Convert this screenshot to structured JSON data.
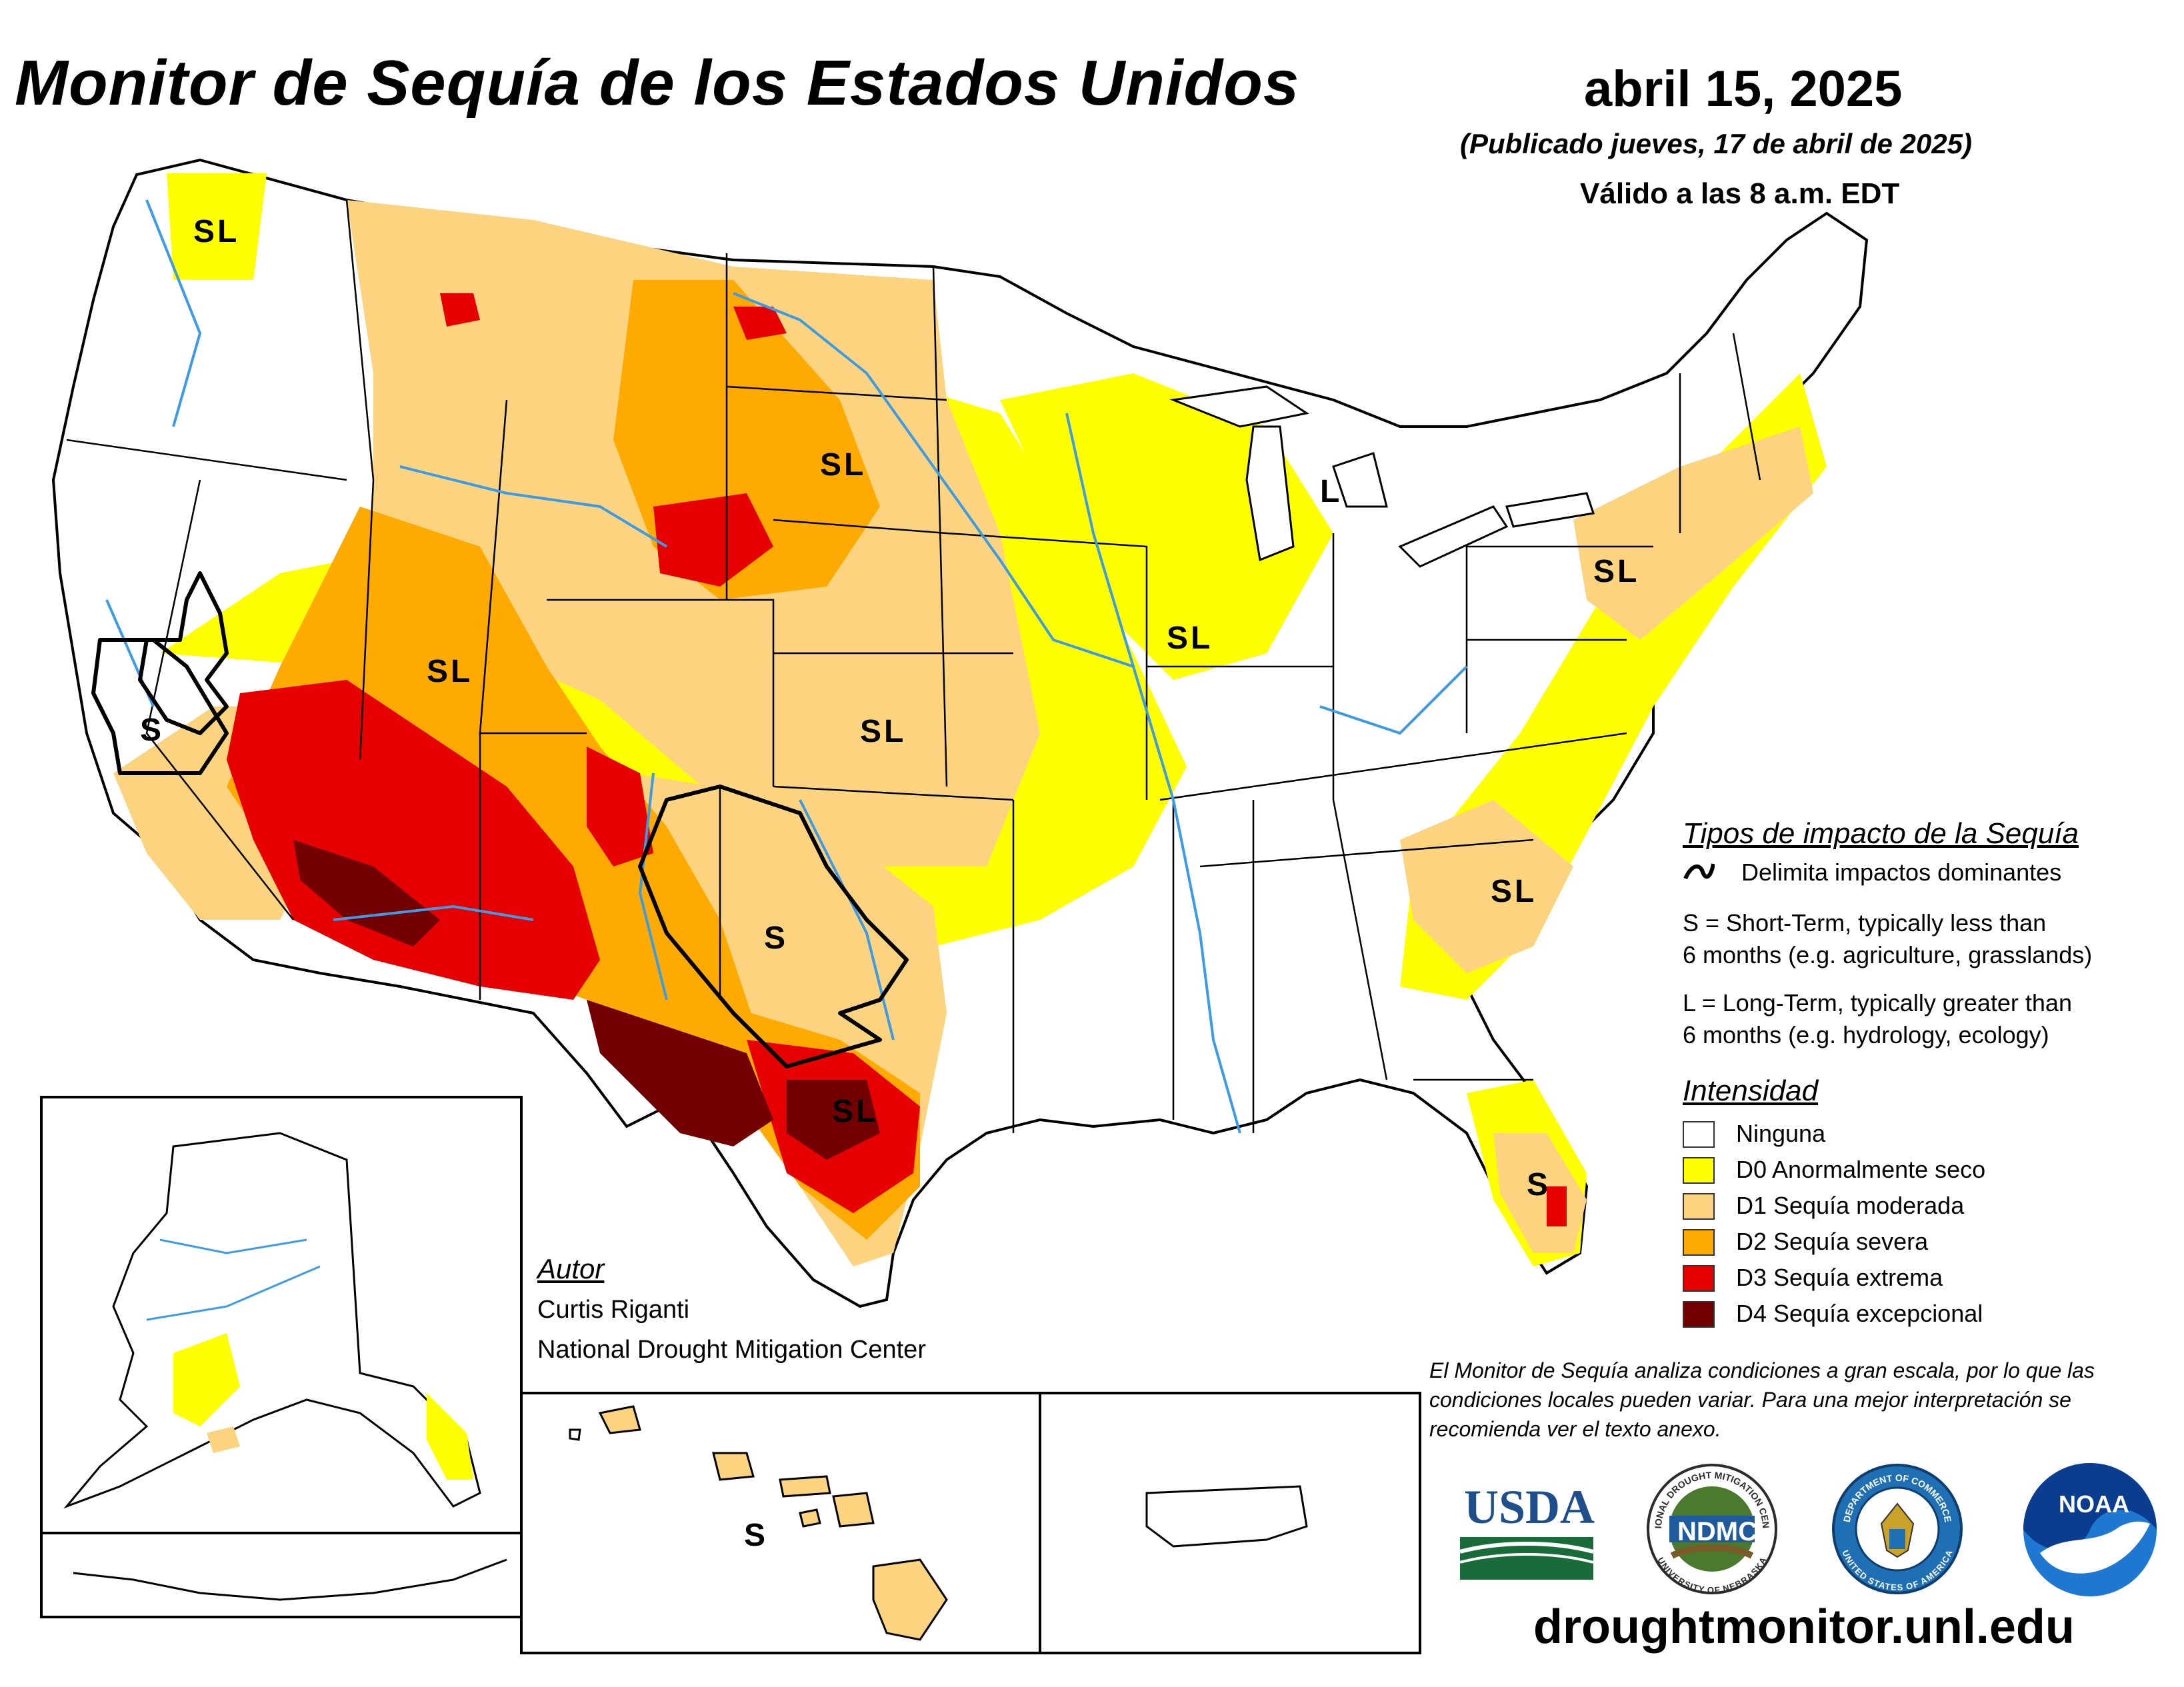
{
  "header": {
    "title": "Monitor de Sequía de los Estados Unidos",
    "date": "abril 15, 2025",
    "published": "(Publicado jueves, 17 de abril de 2025)",
    "valid": "Válido a las 8 a.m. EDT"
  },
  "map_labels": {
    "pacific_nw": "SL",
    "northern_plains": "SL",
    "michigan": "L",
    "great_basin": "SL",
    "california": "S",
    "illinois": "SL",
    "kansas": "SL",
    "pennsylvania": "SL",
    "new_mexico_texas": "S",
    "south_texas": "SL",
    "carolinas": "SL",
    "florida": "S",
    "hawaii": "S"
  },
  "legend": {
    "impact_heading": "Tipos de impacto de la Sequía",
    "impact_line_label": "Delimita impactos dominantes",
    "short_term_line1": "S = Short-Term, typically less than",
    "short_term_line2": "6 months (e.g. agriculture, grasslands)",
    "long_term_line1": "L = Long-Term, typically greater than",
    "long_term_line2": "6 months (e.g. hydrology, ecology)",
    "intensity_heading": "Intensidad",
    "categories": [
      {
        "label": "Ninguna",
        "color": "#ffffff"
      },
      {
        "label": "D0 Anormalmente seco",
        "color": "#ffff00"
      },
      {
        "label": "D1 Sequía moderada",
        "color": "#fcd37f"
      },
      {
        "label": "D2 Sequía severa",
        "color": "#ffaa00"
      },
      {
        "label": "D3 Sequía extrema",
        "color": "#e60000"
      },
      {
        "label": "D4 Sequía excepcional",
        "color": "#730000"
      }
    ]
  },
  "author": {
    "heading": "Autor",
    "name": "Curtis Riganti",
    "org": "National Drought Mitigation Center"
  },
  "disclaimer": "El Monitor de Sequía analiza condiciones a gran escala, por lo que las condiciones locales pueden variar. Para una mejor interpretación se recomienda ver el texto anexo.",
  "logos": {
    "usda": "USDA",
    "ndmc": "NDMC",
    "ndmc_ring_top": "NATIONAL DROUGHT MITIGATION CENTER",
    "ndmc_ring_bottom": "UNIVERSITY OF NEBRASKA",
    "commerce_ring_top": "DEPARTMENT OF COMMERCE",
    "commerce_ring_bottom": "UNITED STATES OF AMERICA",
    "noaa": "NOAA"
  },
  "website": "droughtmonitor.unl.edu",
  "colors": {
    "river": "#3c9be6",
    "border": "#000000"
  }
}
